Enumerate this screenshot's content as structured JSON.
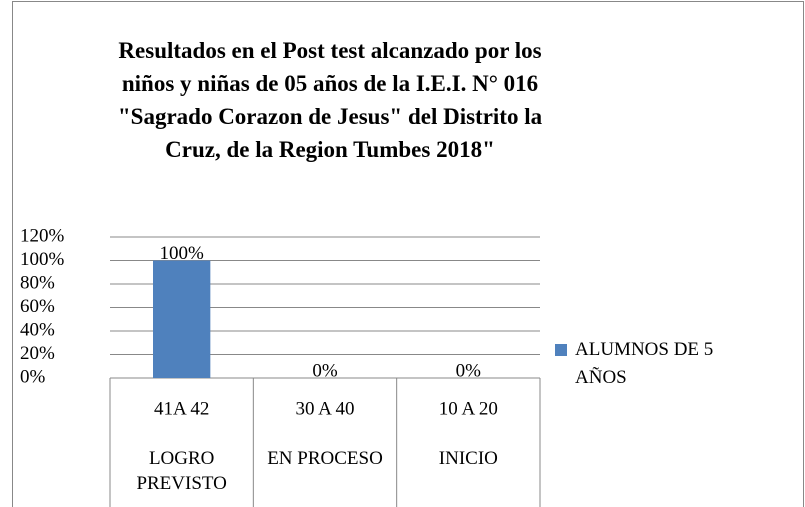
{
  "chart_data": {
    "type": "bar",
    "title": "Resultados en el Post test alcanzado por los niños y niñas de 05 años de la I.E.I. N° 016 \"Sagrado Corazon de Jesus\" del Distrito la Cruz, de la Region Tumbes 2018\"",
    "categories": [
      "41A 42",
      "30 A 40",
      "10 A 20"
    ],
    "category_groups": [
      "LOGRO PREVISTO",
      "EN PROCESO",
      "INICIO"
    ],
    "series": [
      {
        "name": "ALUMNOS DE 5 AÑOS",
        "color": "#4f81bd",
        "values": [
          100,
          0,
          0
        ],
        "value_labels": [
          "100%",
          "0%",
          "0%"
        ]
      }
    ],
    "ylim": [
      0,
      120
    ],
    "yticks": [
      {
        "value": 0,
        "label": "0%"
      },
      {
        "value": 20,
        "label": "20%"
      },
      {
        "value": 40,
        "label": "40%"
      },
      {
        "value": 60,
        "label": "60%"
      },
      {
        "value": 80,
        "label": "80%"
      },
      {
        "value": 100,
        "label": "100%"
      },
      {
        "value": 120,
        "label": "120%"
      }
    ],
    "grid": true,
    "legend": "right"
  }
}
